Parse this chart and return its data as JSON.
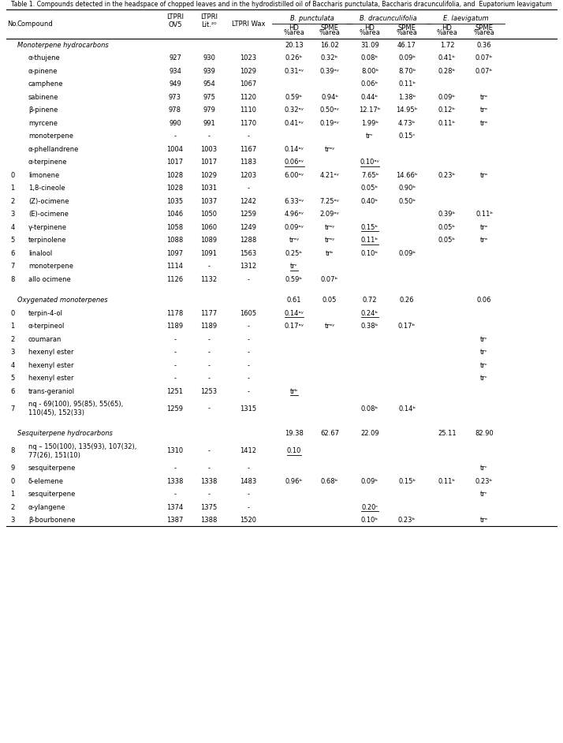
{
  "title": "Table 1. Compounds detected in the headspace of chopped leaves and in the hydrodistilled oil of Baccharis punctulata, Baccharis dracunculifolia, and  Eupatorium leavigatum",
  "rows": [
    {
      "no": "",
      "compound": "Monoterpene hydrocarbons",
      "ov5": "",
      "lit": "",
      "wax": "",
      "bp_hd": "20.13",
      "bp_spme": "16.02",
      "bd_hd": "31.09",
      "bd_spme": "46.17",
      "el_hd": "1.72",
      "el_spme": "0.36",
      "section": true,
      "spacer": false,
      "multiline": false,
      "u_bp_hd": false,
      "u_bd_hd": false,
      "u_bp_spme": false
    },
    {
      "no": "",
      "compound": "α-thujene",
      "ov5": "927",
      "lit": "930",
      "wax": "1023",
      "bp_hd": "0.26ᵇ",
      "bp_spme": "0.32ᵇ",
      "bd_hd": "0.08ᵇ",
      "bd_spme": "0.09ᵇ",
      "el_hd": "0.41ᵇ",
      "el_spme": "0.07ᵇ",
      "section": false,
      "spacer": false,
      "multiline": false,
      "u_bp_hd": false,
      "u_bd_hd": false,
      "u_bp_spme": false
    },
    {
      "no": "",
      "compound": "α-pinene",
      "ov5": "934",
      "lit": "939",
      "wax": "1029",
      "bp_hd": "0.31ᵃʸ",
      "bp_spme": "0.39ᵃʸ",
      "bd_hd": "8.00ᵇ",
      "bd_spme": "8.70ᵇ",
      "el_hd": "0.28ᵇ",
      "el_spme": "0.07ᵇ",
      "section": false,
      "spacer": false,
      "multiline": false,
      "u_bp_hd": false,
      "u_bd_hd": false,
      "u_bp_spme": false
    },
    {
      "no": "",
      "compound": "camphene",
      "ov5": "949",
      "lit": "954",
      "wax": "1067",
      "bp_hd": "",
      "bp_spme": "",
      "bd_hd": "0.06ᵇ",
      "bd_spme": "0.11ᵇ",
      "el_hd": "",
      "el_spme": "",
      "section": false,
      "spacer": false,
      "multiline": false,
      "u_bp_hd": false,
      "u_bd_hd": false,
      "u_bp_spme": false
    },
    {
      "no": "",
      "compound": "sabinene",
      "ov5": "973",
      "lit": "975",
      "wax": "1120",
      "bp_hd": "0.59ᵇ",
      "bp_spme": "0.94ᵇ",
      "bd_hd": "0.44ᵇ",
      "bd_spme": "1.38ᵇ",
      "el_hd": "0.09ᵇ",
      "el_spme": "trᵃ",
      "section": false,
      "spacer": false,
      "multiline": false,
      "u_bp_hd": false,
      "u_bd_hd": false,
      "u_bp_spme": false
    },
    {
      "no": "",
      "compound": "β-pinene",
      "ov5": "978",
      "lit": "979",
      "wax": "1110",
      "bp_hd": "0.32ᵃʸ",
      "bp_spme": "0.50ᵃʸ",
      "bd_hd": "12.17ᵇ",
      "bd_spme": "14.95ᵇ",
      "el_hd": "0.12ᵇ",
      "el_spme": "trᵃ",
      "section": false,
      "spacer": false,
      "multiline": false,
      "u_bp_hd": false,
      "u_bd_hd": false,
      "u_bp_spme": false
    },
    {
      "no": "",
      "compound": "myrcene",
      "ov5": "990",
      "lit": "991",
      "wax": "1170",
      "bp_hd": "0.41ᵃʸ",
      "bp_spme": "0.19ᵃʸ",
      "bd_hd": "1.99ᵇ",
      "bd_spme": "4.73ᵇ",
      "el_hd": "0.11ᵇ",
      "el_spme": "trᵃ",
      "section": false,
      "spacer": false,
      "multiline": false,
      "u_bp_hd": false,
      "u_bd_hd": false,
      "u_bp_spme": false
    },
    {
      "no": "",
      "compound": "monoterpene",
      "ov5": "-",
      "lit": "-",
      "wax": "-",
      "bp_hd": "",
      "bp_spme": "",
      "bd_hd": "trᶜ",
      "bd_spme": "0.15ᶜ",
      "el_hd": "",
      "el_spme": "",
      "section": false,
      "spacer": false,
      "multiline": false,
      "u_bp_hd": false,
      "u_bd_hd": false,
      "u_bp_spme": false
    },
    {
      "no": "",
      "compound": "α-phellandrene",
      "ov5": "1004",
      "lit": "1003",
      "wax": "1167",
      "bp_hd": "0.14ᵃʸ",
      "bp_spme": "trᵃʸ",
      "bd_hd": "",
      "bd_spme": "",
      "el_hd": "",
      "el_spme": "",
      "section": false,
      "spacer": false,
      "multiline": false,
      "u_bp_hd": false,
      "u_bd_hd": false,
      "u_bp_spme": false
    },
    {
      "no": "",
      "compound": "α-terpinene",
      "ov5": "1017",
      "lit": "1017",
      "wax": "1183",
      "bp_hd": "0.06ᵃʸ",
      "bp_spme": "",
      "bd_hd": "0.10ᵃʸ",
      "bd_spme": "",
      "el_hd": "",
      "el_spme": "",
      "section": false,
      "spacer": false,
      "multiline": false,
      "u_bp_hd": true,
      "u_bd_hd": true,
      "u_bp_spme": false
    },
    {
      "no": "0",
      "compound": "limonene",
      "ov5": "1028",
      "lit": "1029",
      "wax": "1203",
      "bp_hd": "6.00ᵃʸ",
      "bp_spme": "4.21ᵃʸ",
      "bd_hd": "7.65ᵇ",
      "bd_spme": "14.66ᵇ",
      "el_hd": "0.23ᵇ",
      "el_spme": "trᵃ",
      "section": false,
      "spacer": false,
      "multiline": false,
      "u_bp_hd": false,
      "u_bd_hd": false,
      "u_bp_spme": false
    },
    {
      "no": "1",
      "compound": "1,8-cineole",
      "ov5": "1028",
      "lit": "1031",
      "wax": "-",
      "bp_hd": "",
      "bp_spme": "",
      "bd_hd": "0.05ᵇ",
      "bd_spme": "0.90ᵇ",
      "el_hd": "",
      "el_spme": "",
      "section": false,
      "spacer": false,
      "multiline": false,
      "u_bp_hd": false,
      "u_bd_hd": false,
      "u_bp_spme": false
    },
    {
      "no": "2",
      "compound": "(Z)-ocimene",
      "ov5": "1035",
      "lit": "1037",
      "wax": "1242",
      "bp_hd": "6.33ᵃʸ",
      "bp_spme": "7.25ᵃʸ",
      "bd_hd": "0.40ᵇ",
      "bd_spme": "0.50ᵇ",
      "el_hd": "",
      "el_spme": "",
      "section": false,
      "spacer": false,
      "multiline": false,
      "u_bp_hd": false,
      "u_bd_hd": false,
      "u_bp_spme": false
    },
    {
      "no": "3",
      "compound": "(E)-ocimene",
      "ov5": "1046",
      "lit": "1050",
      "wax": "1259",
      "bp_hd": "4.96ᵃʸ",
      "bp_spme": "2.09ᵃʸ",
      "bd_hd": "",
      "bd_spme": "",
      "el_hd": "0.39ᵇ",
      "el_spme": "0.11ᵇ",
      "section": false,
      "spacer": false,
      "multiline": false,
      "u_bp_hd": false,
      "u_bd_hd": false,
      "u_bp_spme": false
    },
    {
      "no": "4",
      "compound": "γ-terpinene",
      "ov5": "1058",
      "lit": "1060",
      "wax": "1249",
      "bp_hd": "0.09ᵃʸ",
      "bp_spme": "trᵃʸ",
      "bd_hd": "0.15ᵇ",
      "bd_spme": "",
      "el_hd": "0.05ᵇ",
      "el_spme": "trᵃ",
      "section": false,
      "spacer": false,
      "multiline": false,
      "u_bp_hd": false,
      "u_bd_hd": true,
      "u_bp_spme": false
    },
    {
      "no": "5",
      "compound": "terpinolene",
      "ov5": "1088",
      "lit": "1089",
      "wax": "1288",
      "bp_hd": "trᵃʸ",
      "bp_spme": "trᵃʸ",
      "bd_hd": "0.11ᵇ",
      "bd_spme": "",
      "el_hd": "0.05ᵇ",
      "el_spme": "trᵃ",
      "section": false,
      "spacer": false,
      "multiline": false,
      "u_bp_hd": false,
      "u_bd_hd": true,
      "u_bp_spme": false
    },
    {
      "no": "6",
      "compound": "linalool",
      "ov5": "1097",
      "lit": "1091",
      "wax": "1563",
      "bp_hd": "0.25ᵇ",
      "bp_spme": "trᵇ",
      "bd_hd": "0.10ᵇ",
      "bd_spme": "0.09ᵇ",
      "el_hd": "",
      "el_spme": "",
      "section": false,
      "spacer": false,
      "multiline": false,
      "u_bp_hd": false,
      "u_bd_hd": false,
      "u_bp_spme": false
    },
    {
      "no": "7",
      "compound": "monoterpene",
      "ov5": "1114",
      "lit": "-",
      "wax": "1312",
      "bp_hd": "trᶜ",
      "bp_spme": "",
      "bd_hd": "",
      "bd_spme": "",
      "el_hd": "",
      "el_spme": "",
      "section": false,
      "spacer": false,
      "multiline": false,
      "u_bp_hd": true,
      "u_bd_hd": false,
      "u_bp_spme": false
    },
    {
      "no": "8",
      "compound": "allo ocimene",
      "ov5": "1126",
      "lit": "1132",
      "wax": "-",
      "bp_hd": "0.59ᵇ",
      "bp_spme": "0.07ᵇ",
      "bd_hd": "",
      "bd_spme": "",
      "el_hd": "",
      "el_spme": "",
      "section": false,
      "spacer": false,
      "multiline": false,
      "u_bp_hd": false,
      "u_bd_hd": false,
      "u_bp_spme": false
    },
    {
      "no": "",
      "compound": "",
      "ov5": "",
      "lit": "",
      "wax": "",
      "bp_hd": "",
      "bp_spme": "",
      "bd_hd": "",
      "bd_spme": "",
      "el_hd": "",
      "el_spme": "",
      "section": false,
      "spacer": true,
      "multiline": false,
      "u_bp_hd": false,
      "u_bd_hd": false,
      "u_bp_spme": false
    },
    {
      "no": "",
      "compound": "Oxygenated monoterpenes",
      "ov5": "",
      "lit": "",
      "wax": "",
      "bp_hd": "0.61",
      "bp_spme": "0.05",
      "bd_hd": "0.72",
      "bd_spme": "0.26",
      "el_hd": "",
      "el_spme": "0.06",
      "section": true,
      "spacer": false,
      "multiline": false,
      "u_bp_hd": false,
      "u_bd_hd": false,
      "u_bp_spme": false
    },
    {
      "no": "0",
      "compound": "terpin-4-ol",
      "ov5": "1178",
      "lit": "1177",
      "wax": "1605",
      "bp_hd": "0.14ᵃʸ",
      "bp_spme": "",
      "bd_hd": "0.24ᵇ",
      "bd_spme": "",
      "el_hd": "",
      "el_spme": "",
      "section": false,
      "spacer": false,
      "multiline": false,
      "u_bp_hd": true,
      "u_bd_hd": true,
      "u_bp_spme": false
    },
    {
      "no": "1",
      "compound": "α-terpineol",
      "ov5": "1189",
      "lit": "1189",
      "wax": "-",
      "bp_hd": "0.17ᵃʸ",
      "bp_spme": "trᵃʸ",
      "bd_hd": "0.38ᵇ",
      "bd_spme": "0.17ᵇ",
      "el_hd": "",
      "el_spme": "",
      "section": false,
      "spacer": false,
      "multiline": false,
      "u_bp_hd": false,
      "u_bd_hd": false,
      "u_bp_spme": false
    },
    {
      "no": "2",
      "compound": "coumaran",
      "ov5": "-",
      "lit": "-",
      "wax": "-",
      "bp_hd": "",
      "bp_spme": "",
      "bd_hd": "",
      "bd_spme": "",
      "el_hd": "",
      "el_spme": "trᶜ",
      "section": false,
      "spacer": false,
      "multiline": false,
      "u_bp_hd": false,
      "u_bd_hd": false,
      "u_bp_spme": false
    },
    {
      "no": "3",
      "compound": "hexenyl ester",
      "ov5": "-",
      "lit": "-",
      "wax": "-",
      "bp_hd": "",
      "bp_spme": "",
      "bd_hd": "",
      "bd_spme": "",
      "el_hd": "",
      "el_spme": "trᶜ",
      "section": false,
      "spacer": false,
      "multiline": false,
      "u_bp_hd": false,
      "u_bd_hd": false,
      "u_bp_spme": false
    },
    {
      "no": "4",
      "compound": "hexenyl ester",
      "ov5": "-",
      "lit": "-",
      "wax": "-",
      "bp_hd": "",
      "bp_spme": "",
      "bd_hd": "",
      "bd_spme": "",
      "el_hd": "",
      "el_spme": "trᶜ",
      "section": false,
      "spacer": false,
      "multiline": false,
      "u_bp_hd": false,
      "u_bd_hd": false,
      "u_bp_spme": false
    },
    {
      "no": "5",
      "compound": "hexenyl ester",
      "ov5": "-",
      "lit": "-",
      "wax": "-",
      "bp_hd": "",
      "bp_spme": "",
      "bd_hd": "",
      "bd_spme": "",
      "el_hd": "",
      "el_spme": "trᶜ",
      "section": false,
      "spacer": false,
      "multiline": false,
      "u_bp_hd": false,
      "u_bd_hd": false,
      "u_bp_spme": false
    },
    {
      "no": "6",
      "compound": "trans-geraniol",
      "ov5": "1251",
      "lit": "1253",
      "wax": "-",
      "bp_hd": "trᵇ",
      "bp_spme": "",
      "bd_hd": "",
      "bd_spme": "",
      "el_hd": "",
      "el_spme": "",
      "section": false,
      "spacer": false,
      "multiline": false,
      "u_bp_hd": true,
      "u_bd_hd": false,
      "u_bp_spme": false
    },
    {
      "no": "7",
      "compound": "nq - 69(100), 95(85), 55(65),\n110(45), 152(33)",
      "ov5": "1259",
      "lit": "-",
      "wax": "1315",
      "bp_hd": "",
      "bp_spme": "",
      "bd_hd": "0.08ᵇ",
      "bd_spme": "0.14ᵇ",
      "el_hd": "",
      "el_spme": "",
      "section": false,
      "spacer": false,
      "multiline": true,
      "u_bp_hd": false,
      "u_bd_hd": false,
      "u_bp_spme": false
    },
    {
      "no": "",
      "compound": "",
      "ov5": "",
      "lit": "",
      "wax": "",
      "bp_hd": "",
      "bp_spme": "",
      "bd_hd": "",
      "bd_spme": "",
      "el_hd": "",
      "el_spme": "",
      "section": false,
      "spacer": true,
      "multiline": false,
      "u_bp_hd": false,
      "u_bd_hd": false,
      "u_bp_spme": false
    },
    {
      "no": "",
      "compound": "Sesquiterpene hydrocarbons",
      "ov5": "",
      "lit": "",
      "wax": "",
      "bp_hd": "19.38",
      "bp_spme": "62.67",
      "bd_hd": "22.09",
      "bd_spme": "",
      "el_hd": "25.11",
      "el_spme": "82.90",
      "section": true,
      "spacer": false,
      "multiline": false,
      "u_bp_hd": false,
      "u_bd_hd": false,
      "u_bp_spme": false
    },
    {
      "no": "8",
      "compound": "nq – 150(100), 135(93), 107(32),\n77(26), 151(10)",
      "ov5": "1310",
      "lit": "-",
      "wax": "1412",
      "bp_hd": "0.10",
      "bp_spme": "",
      "bd_hd": "",
      "bd_spme": "",
      "el_hd": "",
      "el_spme": "",
      "section": false,
      "spacer": false,
      "multiline": true,
      "u_bp_hd": true,
      "u_bd_hd": false,
      "u_bp_spme": false
    },
    {
      "no": "9",
      "compound": "sesquiterpene",
      "ov5": "-",
      "lit": "-",
      "wax": "-",
      "bp_hd": "",
      "bp_spme": "",
      "bd_hd": "",
      "bd_spme": "",
      "el_hd": "",
      "el_spme": "trᶜ",
      "section": false,
      "spacer": false,
      "multiline": false,
      "u_bp_hd": false,
      "u_bd_hd": false,
      "u_bp_spme": false
    },
    {
      "no": "0",
      "compound": "δ-elemene",
      "ov5": "1338",
      "lit": "1338",
      "wax": "1483",
      "bp_hd": "0.96ᵇ",
      "bp_spme": "0.68ᵇ",
      "bd_hd": "0.09ᵇ",
      "bd_spme": "0.15ᵇ",
      "el_hd": "0.11ᵇ",
      "el_spme": "0.23ᵇ",
      "section": false,
      "spacer": false,
      "multiline": false,
      "u_bp_hd": false,
      "u_bd_hd": false,
      "u_bp_spme": false
    },
    {
      "no": "1",
      "compound": "sesquiterpene",
      "ov5": "-",
      "lit": "-",
      "wax": "-",
      "bp_hd": "",
      "bp_spme": "",
      "bd_hd": "",
      "bd_spme": "",
      "el_hd": "",
      "el_spme": "trᶜ",
      "section": false,
      "spacer": false,
      "multiline": false,
      "u_bp_hd": false,
      "u_bd_hd": false,
      "u_bp_spme": false
    },
    {
      "no": "2",
      "compound": "α-ylangene",
      "ov5": "1374",
      "lit": "1375",
      "wax": "-",
      "bp_hd": "",
      "bp_spme": "",
      "bd_hd": "0.20ᶜ",
      "bd_spme": "",
      "el_hd": "",
      "el_spme": "",
      "section": false,
      "spacer": false,
      "multiline": false,
      "u_bp_hd": false,
      "u_bd_hd": true,
      "u_bp_spme": false
    },
    {
      "no": "3",
      "compound": "β-bourbonene",
      "ov5": "1387",
      "lit": "1388",
      "wax": "1520",
      "bp_hd": "",
      "bp_spme": "",
      "bd_hd": "0.10ᵇ",
      "bd_spme": "0.23ᵇ",
      "el_hd": "",
      "el_spme": "trᵃ",
      "section": false,
      "spacer": false,
      "multiline": false,
      "u_bp_hd": false,
      "u_bd_hd": false,
      "u_bp_spme": false
    }
  ]
}
